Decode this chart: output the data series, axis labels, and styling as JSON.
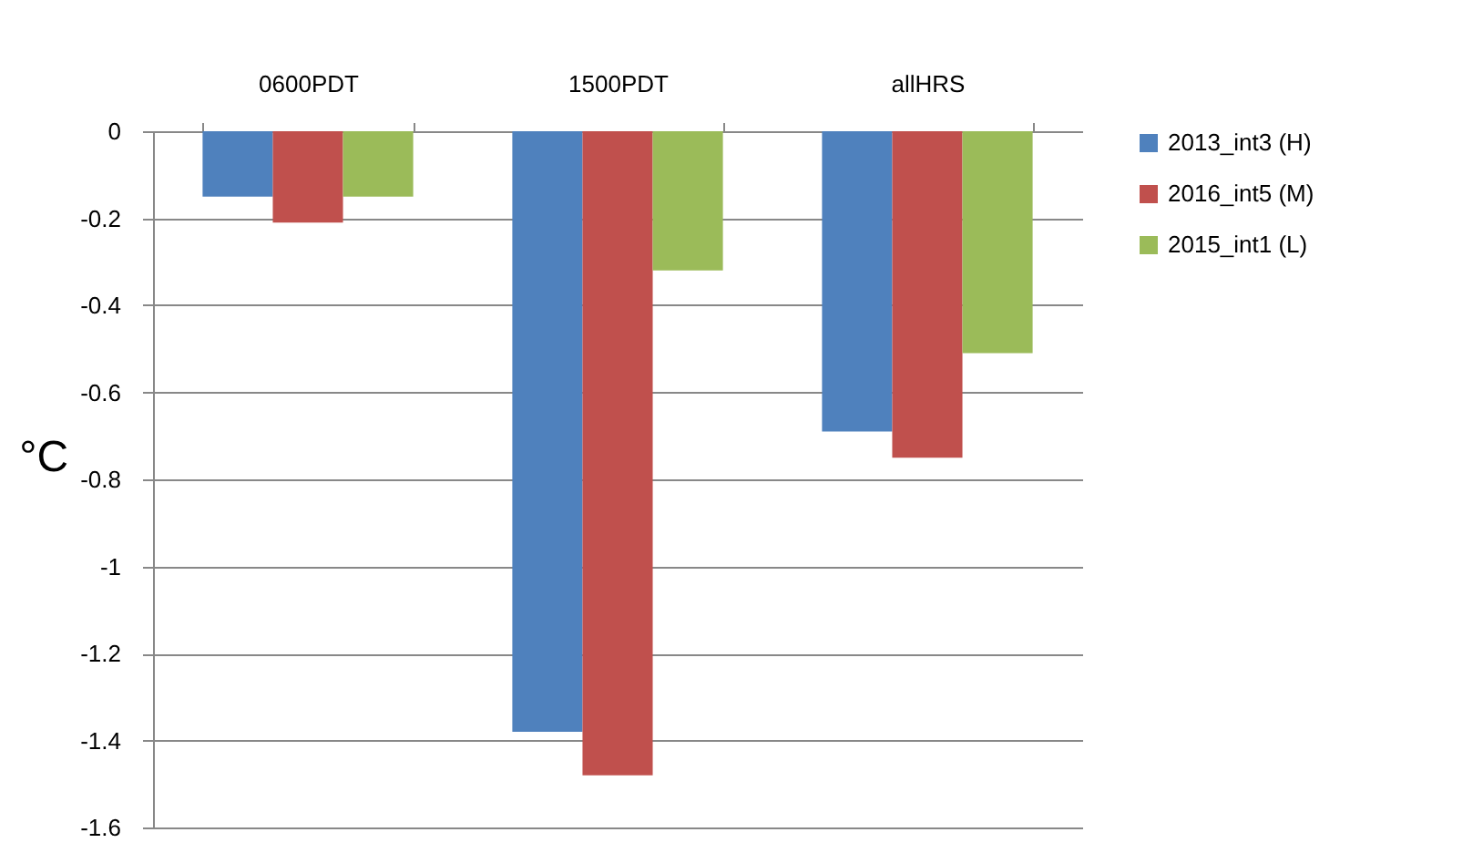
{
  "chart_data": {
    "type": "bar",
    "ylabel": "°C",
    "categories": [
      "0600PDT",
      "1500PDT",
      "allHRS"
    ],
    "series": [
      {
        "name": "2013_int3 (H)",
        "color": "#4f81bd",
        "values": [
          -0.15,
          -1.38,
          -0.69
        ]
      },
      {
        "name": "2016_int5 (M)",
        "color": "#c0504d",
        "values": [
          -0.21,
          -1.48,
          -0.75
        ]
      },
      {
        "name": "2015_int1 (L)",
        "color": "#9bbb59",
        "values": [
          -0.15,
          -0.32,
          -0.51
        ]
      }
    ],
    "ylim": [
      -1.6,
      0
    ],
    "yticks": [
      0,
      -0.2,
      -0.4,
      -0.6,
      -0.8,
      -1,
      -1.2,
      -1.4,
      -1.6
    ],
    "grid": "y",
    "legend": "right"
  }
}
